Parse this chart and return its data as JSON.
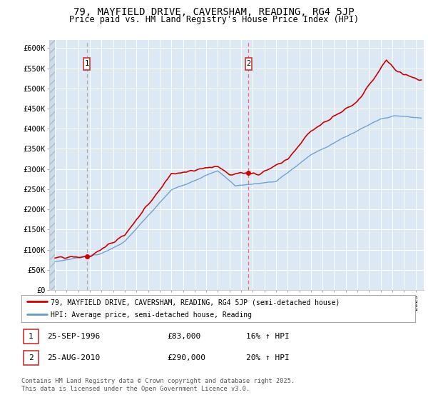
{
  "title_line1": "79, MAYFIELD DRIVE, CAVERSHAM, READING, RG4 5JP",
  "title_line2": "Price paid vs. HM Land Registry's House Price Index (HPI)",
  "background_color": "#dce9f5",
  "hatch_color": "#b8cfe0",
  "red_line_color": "#cc0000",
  "blue_line_color": "#6699cc",
  "marker_color": "#cc0000",
  "vline1_color": "#bbbbbb",
  "vline2_color": "#ff6666",
  "purchase1_date": 1996.73,
  "purchase1_price": 83000,
  "purchase2_date": 2010.64,
  "purchase2_price": 290000,
  "ylim_max": 620000,
  "ylim_min": 0,
  "xlim_min": 1993.5,
  "xlim_max": 2025.7,
  "legend_line1": "79, MAYFIELD DRIVE, CAVERSHAM, READING, RG4 5JP (semi-detached house)",
  "legend_line2": "HPI: Average price, semi-detached house, Reading",
  "note1_num": "1",
  "note1_date": "25-SEP-1996",
  "note1_price": "£83,000",
  "note1_hpi": "16% ↑ HPI",
  "note2_num": "2",
  "note2_date": "25-AUG-2010",
  "note2_price": "£290,000",
  "note2_hpi": "20% ↑ HPI",
  "footer": "Contains HM Land Registry data © Crown copyright and database right 2025.\nThis data is licensed under the Open Government Licence v3.0.",
  "yticks": [
    0,
    50000,
    100000,
    150000,
    200000,
    250000,
    300000,
    350000,
    400000,
    450000,
    500000,
    550000,
    600000
  ],
  "ytick_labels": [
    "£0",
    "£50K",
    "£100K",
    "£150K",
    "£200K",
    "£250K",
    "£300K",
    "£350K",
    "£400K",
    "£450K",
    "£500K",
    "£550K",
    "£600K"
  ]
}
